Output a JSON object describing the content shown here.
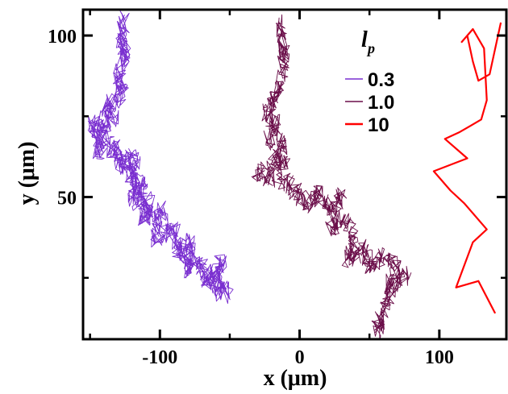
{
  "chart_data": {
    "type": "line",
    "xlabel": "x (μm)",
    "ylabel": "y (μm)",
    "xlim": [
      -155,
      148
    ],
    "ylim": [
      6,
      108
    ],
    "x_ticks": [
      -100,
      0,
      100
    ],
    "x_tick_labels": [
      "-100",
      "0",
      "100"
    ],
    "y_ticks": [
      50,
      100
    ],
    "y_tick_labels": [
      "50",
      "100"
    ],
    "grid": false,
    "legend": {
      "title": "l",
      "title_subscript": "p",
      "placement": "top-right",
      "entries": [
        "0.3",
        "1.0",
        "10"
      ]
    },
    "series": [
      {
        "name": "0.3",
        "color": "#7a2fd0",
        "points": [
          [
            -125,
            106
          ],
          [
            -128,
            98
          ],
          [
            -123,
            95
          ],
          [
            -130,
            88
          ],
          [
            -126,
            82
          ],
          [
            -138,
            78
          ],
          [
            -133,
            74
          ],
          [
            -150,
            72
          ],
          [
            -140,
            70
          ],
          [
            -145,
            64
          ],
          [
            -132,
            66
          ],
          [
            -128,
            60
          ],
          [
            -118,
            62
          ],
          [
            -122,
            56
          ],
          [
            -112,
            54
          ],
          [
            -120,
            50
          ],
          [
            -108,
            48
          ],
          [
            -112,
            44
          ],
          [
            -98,
            46
          ],
          [
            -104,
            38
          ],
          [
            -90,
            40
          ],
          [
            -86,
            32
          ],
          [
            -78,
            36
          ],
          [
            -80,
            28
          ],
          [
            -70,
            30
          ],
          [
            -66,
            24
          ],
          [
            -56,
            30
          ],
          [
            -60,
            22
          ],
          [
            -50,
            20
          ]
        ]
      },
      {
        "name": "1.0",
        "color": "#6b0f4a",
        "points": [
          [
            -15,
            104
          ],
          [
            -12,
            98
          ],
          [
            -10,
            94
          ],
          [
            -14,
            86
          ],
          [
            -18,
            80
          ],
          [
            -24,
            76
          ],
          [
            -16,
            72
          ],
          [
            -22,
            68
          ],
          [
            -10,
            66
          ],
          [
            -20,
            62
          ],
          [
            -8,
            60
          ],
          [
            -32,
            58
          ],
          [
            -18,
            56
          ],
          [
            -6,
            54
          ],
          [
            0,
            50
          ],
          [
            8,
            48
          ],
          [
            14,
            52
          ],
          [
            20,
            46
          ],
          [
            30,
            50
          ],
          [
            22,
            40
          ],
          [
            32,
            44
          ],
          [
            40,
            36
          ],
          [
            34,
            30
          ],
          [
            46,
            34
          ],
          [
            50,
            28
          ],
          [
            60,
            32
          ],
          [
            70,
            28
          ],
          [
            64,
            22
          ],
          [
            76,
            26
          ],
          [
            62,
            18
          ],
          [
            58,
            12
          ],
          [
            54,
            8
          ]
        ]
      },
      {
        "name": "10",
        "color": "#ff0000",
        "points": [
          [
            144,
            104
          ],
          [
            136,
            88
          ],
          [
            128,
            86
          ],
          [
            124,
            92
          ],
          [
            120,
            100
          ],
          [
            116,
            98
          ],
          [
            124,
            102
          ],
          [
            132,
            96
          ],
          [
            134,
            80
          ],
          [
            130,
            74
          ],
          [
            122,
            72
          ],
          [
            114,
            70
          ],
          [
            104,
            68
          ],
          [
            120,
            62
          ],
          [
            96,
            58
          ],
          [
            108,
            52
          ],
          [
            118,
            48
          ],
          [
            134,
            40
          ],
          [
            124,
            36
          ],
          [
            112,
            22
          ],
          [
            128,
            24
          ],
          [
            140,
            14
          ]
        ]
      }
    ]
  }
}
